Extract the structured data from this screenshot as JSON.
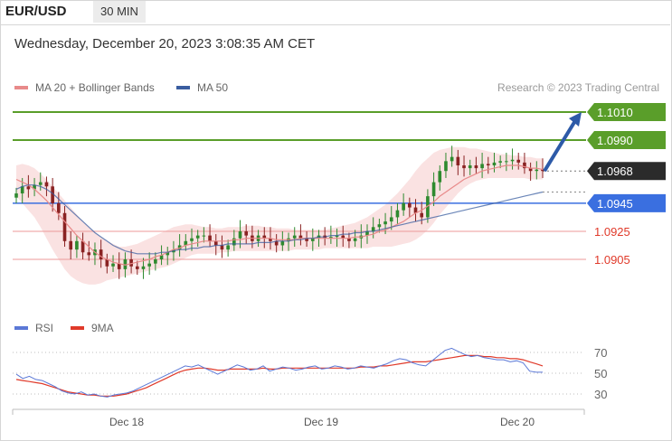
{
  "header": {
    "symbol": "EUR/USD",
    "timeframe": "30 MIN"
  },
  "datetime": "Wednesday, December 20, 2023 3:08:35 AM CET",
  "legend": {
    "ma20": {
      "label": "MA 20 + Bollinger Bands",
      "color": "#e88a8a"
    },
    "ma50": {
      "label": "MA 50",
      "color": "#3a5da0"
    },
    "credit": "Research © 2023 Trading Central"
  },
  "rsi_legend": {
    "rsi": {
      "label": "RSI",
      "color": "#5b78d6"
    },
    "ma9": {
      "label": "9MA",
      "color": "#e03a2a"
    }
  },
  "chart_data": [
    {
      "type": "line",
      "title": "EUR/USD price (candlestick) with MA 20 + Bollinger Bands and MA 50",
      "x_ticks": [
        "Dec 18",
        "Dec 19",
        "Dec 20"
      ],
      "price_levels": [
        {
          "value": 1.101,
          "label": "1.1010",
          "kind": "target",
          "color": "#5a9e2a"
        },
        {
          "value": 1.099,
          "label": "1.0990",
          "kind": "resistance",
          "color": "#5a9e2a"
        },
        {
          "value": 1.0968,
          "label": "1.0968",
          "kind": "last",
          "color": "#2b2b2b"
        },
        {
          "value": 1.0945,
          "label": "1.0945",
          "kind": "pivot",
          "color": "#3a6fe0"
        },
        {
          "value": 1.0925,
          "label": "1.0925",
          "kind": "support",
          "color": "#e03a2a"
        },
        {
          "value": 1.0905,
          "label": "1.0905",
          "kind": "support",
          "color": "#e03a2a"
        }
      ],
      "close": [
        1.0952,
        1.0957,
        1.0955,
        1.0958,
        1.096,
        1.0957,
        1.0945,
        1.0938,
        1.0918,
        1.0912,
        1.0918,
        1.091,
        1.0908,
        1.0912,
        1.0905,
        1.09,
        1.0902,
        1.0898,
        1.0905,
        1.09,
        1.0898,
        1.09,
        1.0902,
        1.0905,
        1.0908,
        1.091,
        1.0912,
        1.0915,
        1.0918,
        1.092,
        1.0922,
        1.0922,
        1.0918,
        1.0915,
        1.0912,
        1.0915,
        1.092,
        1.0925,
        1.0922,
        1.0918,
        1.0922,
        1.092,
        1.0918,
        1.0915,
        1.0918,
        1.092,
        1.0922,
        1.092,
        1.0918,
        1.092,
        1.0922,
        1.092,
        1.0921,
        1.0922,
        1.092,
        1.0918,
        1.092,
        1.0922,
        1.0925,
        1.0928,
        1.093,
        1.0932,
        1.0935,
        1.094,
        1.0945,
        1.0942,
        1.0938,
        1.0935,
        1.095,
        1.096,
        1.0968,
        1.0975,
        1.0978,
        1.0972,
        1.097,
        1.0972,
        1.097,
        1.0973,
        1.0972,
        1.0974,
        1.0975,
        1.0975,
        1.0976,
        1.0974,
        1.097,
        1.0968,
        1.0969,
        1.0968
      ],
      "ma20": [
        1.0962,
        1.096,
        1.0958,
        1.0955,
        1.0951,
        1.0947,
        1.0942,
        1.0937,
        1.0932,
        1.0927,
        1.0922,
        1.0918,
        1.0914,
        1.091,
        1.0907,
        1.0905,
        1.0903,
        1.0902,
        1.0901,
        1.0902,
        1.0903,
        1.0904,
        1.0905,
        1.0907,
        1.0908,
        1.091,
        1.0912,
        1.0913,
        1.0915,
        1.0916,
        1.0917,
        1.0918,
        1.0918,
        1.0918,
        1.0918,
        1.0918,
        1.0919,
        1.0919,
        1.092,
        1.092,
        1.092,
        1.092,
        1.092,
        1.0919,
        1.0919,
        1.0919,
        1.0919,
        1.092,
        1.092,
        1.092,
        1.092,
        1.092,
        1.092,
        1.092,
        1.092,
        1.092,
        1.0921,
        1.0921,
        1.0922,
        1.0923,
        1.0925,
        1.0926,
        1.0928,
        1.093,
        1.0932,
        1.0935,
        1.0938,
        1.094,
        1.0943,
        1.0946,
        1.095,
        1.0953,
        1.0956,
        1.0959,
        1.0962,
        1.0964,
        1.0966,
        1.0968,
        1.0969,
        1.097,
        1.0971,
        1.0972,
        1.0972,
        1.0972,
        1.0971,
        1.097,
        1.097,
        1.0969
      ],
      "bb_upper": [
        1.0972,
        1.0973,
        1.0972,
        1.097,
        1.0966,
        1.0962,
        1.0957,
        1.0952,
        1.0947,
        1.0942,
        1.0937,
        1.0932,
        1.0928,
        1.0924,
        1.0921,
        1.0918,
        1.0916,
        1.0914,
        1.0914,
        1.0915,
        1.0916,
        1.0918,
        1.092,
        1.0922,
        1.0924,
        1.0926,
        1.0928,
        1.0929,
        1.093,
        1.093,
        1.0929,
        1.0928,
        1.0928,
        1.0927,
        1.0927,
        1.0928,
        1.0928,
        1.0928,
        1.0929,
        1.0929,
        1.0929,
        1.0928,
        1.0928,
        1.0927,
        1.0927,
        1.0927,
        1.0926,
        1.0926,
        1.0926,
        1.0926,
        1.0926,
        1.0926,
        1.0927,
        1.0928,
        1.0929,
        1.093,
        1.0931,
        1.0933,
        1.0935,
        1.0938,
        1.0941,
        1.0944,
        1.0948,
        1.0952,
        1.0957,
        1.0962,
        1.0968,
        1.0973,
        1.0977,
        1.0981,
        1.0983,
        1.0984,
        1.0985,
        1.0985,
        1.0985,
        1.0984,
        1.0984,
        1.0983,
        1.0982,
        1.0981,
        1.098,
        1.098,
        1.0979,
        1.0979,
        1.0978,
        1.0978,
        1.0977,
        1.0977
      ],
      "bb_lower": [
        1.095,
        1.0945,
        1.094,
        1.0935,
        1.0928,
        1.092,
        1.0912,
        1.0905,
        1.0898,
        1.0893,
        1.089,
        1.0888,
        1.0887,
        1.0887,
        1.0888,
        1.089,
        1.0891,
        1.0892,
        1.0893,
        1.0894,
        1.0895,
        1.0896,
        1.0897,
        1.0898,
        1.0899,
        1.09,
        1.0902,
        1.0904,
        1.0906,
        1.0908,
        1.0909,
        1.0909,
        1.0909,
        1.0909,
        1.091,
        1.091,
        1.0911,
        1.0911,
        1.0911,
        1.0911,
        1.0911,
        1.0911,
        1.0911,
        1.0911,
        1.0911,
        1.0911,
        1.0912,
        1.0912,
        1.0912,
        1.0912,
        1.0912,
        1.0913,
        1.0913,
        1.0913,
        1.0913,
        1.0913,
        1.0913,
        1.0913,
        1.0913,
        1.0914,
        1.0914,
        1.0914,
        1.0914,
        1.0915,
        1.0916,
        1.0917,
        1.0919,
        1.0922,
        1.0926,
        1.0931,
        1.0937,
        1.0942,
        1.0947,
        1.0952,
        1.0956,
        1.0959,
        1.0961,
        1.0962,
        1.0963,
        1.0963,
        1.0963,
        1.0963,
        1.0963,
        1.0963,
        1.0963,
        1.0962,
        1.0962,
        1.0962
      ],
      "ma50": [
        1.0955,
        1.0957,
        1.0958,
        1.0958,
        1.0957,
        1.0955,
        1.0952,
        1.0948,
        1.0944,
        1.094,
        1.0936,
        1.0932,
        1.0928,
        1.0924,
        1.0921,
        1.0918,
        1.0915,
        1.0913,
        1.0911,
        1.091,
        1.0909,
        1.0909,
        1.0909,
        1.0909,
        1.091,
        1.091,
        1.0911,
        1.0912,
        1.0912,
        1.0913,
        1.0913,
        1.0914,
        1.0914,
        1.0915,
        1.0915,
        1.0916,
        1.0916,
        1.0916,
        1.0916,
        1.0916,
        1.0917,
        1.0917,
        1.0917,
        1.0918,
        1.0918,
        1.0918,
        1.0919,
        1.0919,
        1.092,
        1.092,
        1.0921,
        1.0921,
        1.0922,
        1.0922,
        1.0923,
        1.0923,
        1.0924,
        1.0924,
        1.0925,
        1.0925,
        1.0926,
        1.0927,
        1.0928,
        1.0929,
        1.093,
        1.0931,
        1.0932,
        1.0933,
        1.0934,
        1.0935,
        1.0936,
        1.0937,
        1.0938,
        1.0939,
        1.094,
        1.0941,
        1.0942,
        1.0943,
        1.0944,
        1.0945,
        1.0946,
        1.0947,
        1.0948,
        1.0949,
        1.095,
        1.0951,
        1.0952,
        1.0953
      ],
      "ylim": [
        1.088,
        1.102
      ]
    },
    {
      "type": "line",
      "title": "RSI",
      "y_ticks": [
        "70",
        "50",
        "30"
      ],
      "ylim": [
        18,
        82
      ],
      "rsi": [
        49,
        45,
        47,
        44,
        43,
        40,
        37,
        33,
        31,
        30,
        32,
        29,
        30,
        28,
        27,
        29,
        30,
        31,
        33,
        36,
        39,
        42,
        45,
        48,
        51,
        54,
        57,
        56,
        58,
        55,
        52,
        49,
        52,
        55,
        58,
        56,
        53,
        54,
        57,
        52,
        54,
        56,
        55,
        53,
        54,
        56,
        57,
        54,
        55,
        57,
        56,
        54,
        55,
        57,
        56,
        55,
        57,
        59,
        62,
        64,
        63,
        60,
        58,
        57,
        62,
        67,
        72,
        74,
        71,
        68,
        66,
        67,
        65,
        64,
        63,
        63,
        61,
        62,
        60,
        52,
        51,
        51
      ],
      "ma9": [
        44,
        43,
        42,
        41,
        40,
        38,
        36,
        34,
        32,
        31,
        30,
        29,
        29,
        28,
        28,
        28,
        29,
        30,
        32,
        34,
        36,
        39,
        42,
        45,
        48,
        51,
        53,
        54,
        55,
        55,
        54,
        53,
        53,
        54,
        54,
        54,
        54,
        54,
        55,
        54,
        54,
        55,
        55,
        55,
        55,
        55,
        55,
        55,
        55,
        55,
        55,
        55,
        55,
        56,
        56,
        56,
        57,
        57,
        58,
        59,
        60,
        61,
        61,
        61,
        62,
        63,
        64,
        65,
        66,
        67,
        67,
        67,
        66,
        66,
        65,
        65,
        64,
        64,
        63,
        61,
        59,
        57
      ]
    }
  ]
}
